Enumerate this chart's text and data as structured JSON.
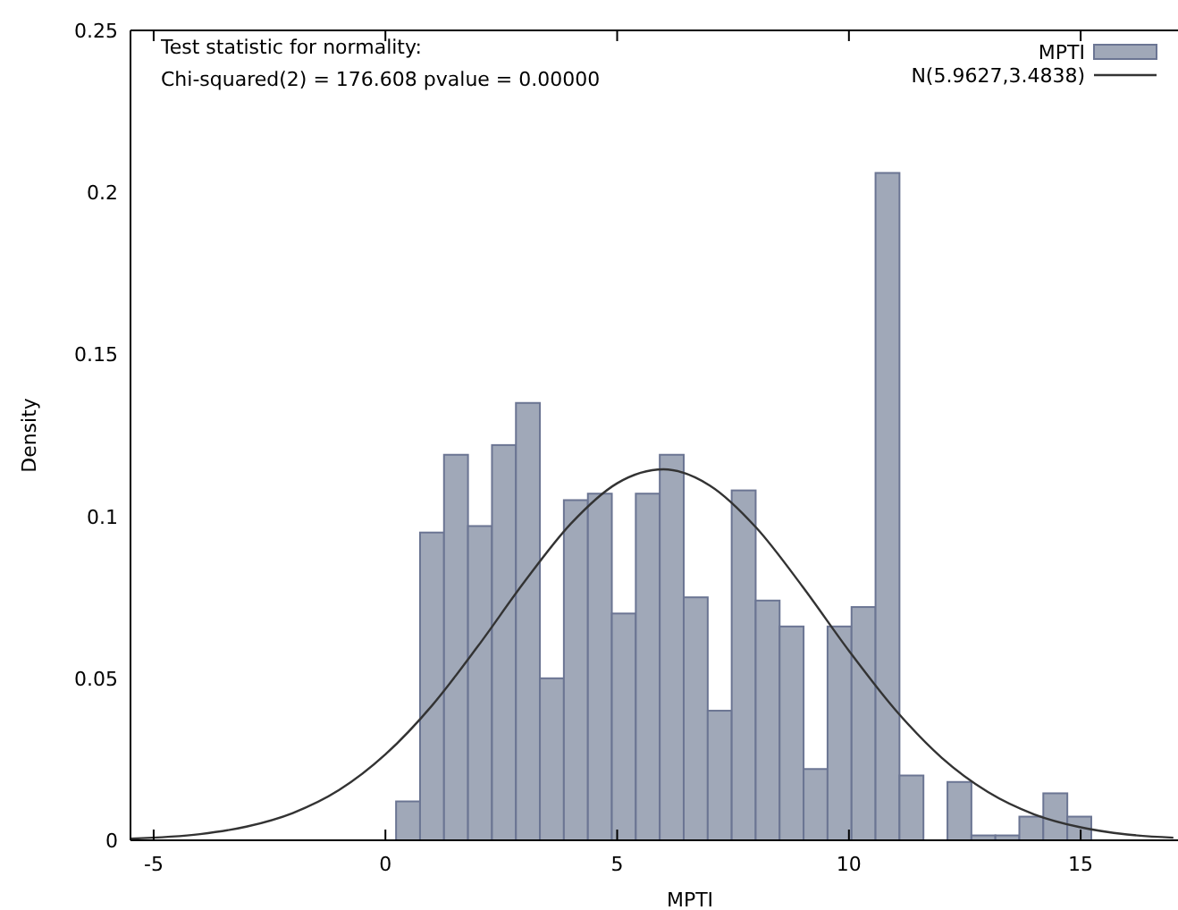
{
  "chart_data": {
    "type": "histogram",
    "xlabel": "MPTI",
    "ylabel": "Density",
    "annotations": [
      "Test statistic for normality:",
      "Chi-squared(2) = 176.608 pvalue = 0.00000"
    ],
    "bins": [
      0.23,
      0.747,
      1.264,
      1.782,
      2.299,
      2.816,
      3.333,
      3.85,
      4.368,
      4.885,
      5.402,
      5.919,
      6.436,
      6.954,
      7.471,
      7.988,
      8.505,
      9.022,
      9.539,
      10.057,
      10.574,
      11.091,
      11.608,
      12.126,
      12.643,
      13.16,
      13.677,
      14.194,
      14.712,
      15.229
    ],
    "series": [
      {
        "name": "MPTI",
        "color": "#a0a8b8",
        "values": [
          0.012,
          0.095,
          0.119,
          0.097,
          0.122,
          0.135,
          0.05,
          0.105,
          0.107,
          0.07,
          0.107,
          0.119,
          0.075,
          0.04,
          0.108,
          0.074,
          0.066,
          0.022,
          0.066,
          0.072,
          0.206,
          0.02,
          0,
          0.018,
          0.0015,
          0.0015,
          0.0073,
          0.0145,
          0.0073
        ]
      },
      {
        "name": "N(5.9627,3.4838)",
        "type": "line",
        "color": "#333333",
        "x": [
          -5.5,
          -4,
          -3,
          -2,
          -1,
          0,
          1,
          2,
          3,
          4,
          5,
          6,
          7,
          8,
          9,
          10,
          11,
          12,
          13,
          14,
          15,
          16,
          17
        ],
        "values": [
          0.0005,
          0.0019,
          0.0042,
          0.0084,
          0.0155,
          0.0265,
          0.0415,
          0.06,
          0.0798,
          0.0977,
          0.1102,
          0.1145,
          0.1095,
          0.0965,
          0.0783,
          0.0585,
          0.0403,
          0.0255,
          0.0149,
          0.008,
          0.004,
          0.0018,
          0.0008
        ]
      }
    ],
    "xlim": [
      -5.5,
      17.1
    ],
    "xticks": [
      -5,
      0,
      5,
      10,
      15
    ],
    "ylim": [
      0,
      0.25
    ],
    "yticks": [
      0,
      0.05,
      0.1,
      0.15,
      0.2,
      0.25
    ],
    "grid": false,
    "legend": "top right"
  }
}
